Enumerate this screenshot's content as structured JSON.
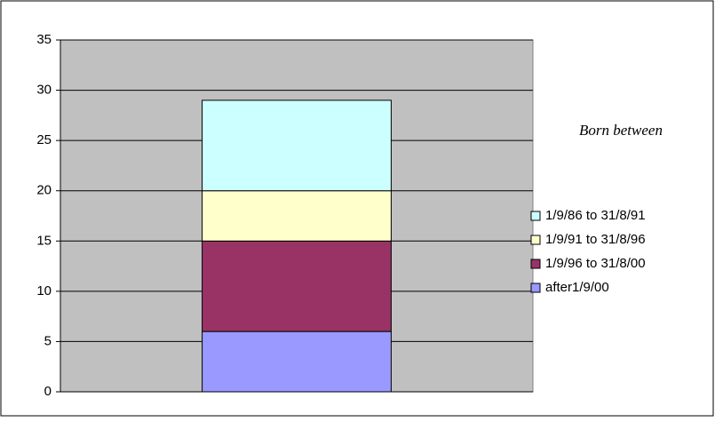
{
  "chart_data": {
    "type": "stacked-bar",
    "categories": [
      null
    ],
    "series": [
      {
        "name": "after1/9/00",
        "color": "#9999ff",
        "values": [
          6
        ]
      },
      {
        "name": "1/9/96 to 31/8/00",
        "color": "#993366",
        "values": [
          9
        ]
      },
      {
        "name": "1/9/91 to 31/8/96",
        "color": "#ffffcc",
        "values": [
          5
        ]
      },
      {
        "name": "1/9/86 to 31/8/91",
        "color": "#ccffff",
        "values": [
          9
        ]
      }
    ],
    "legend_title": "Born between",
    "ylim": [
      0,
      35
    ],
    "yticks": [
      0,
      5,
      10,
      15,
      20,
      25,
      30,
      35
    ],
    "grid": true,
    "legend": "right"
  }
}
